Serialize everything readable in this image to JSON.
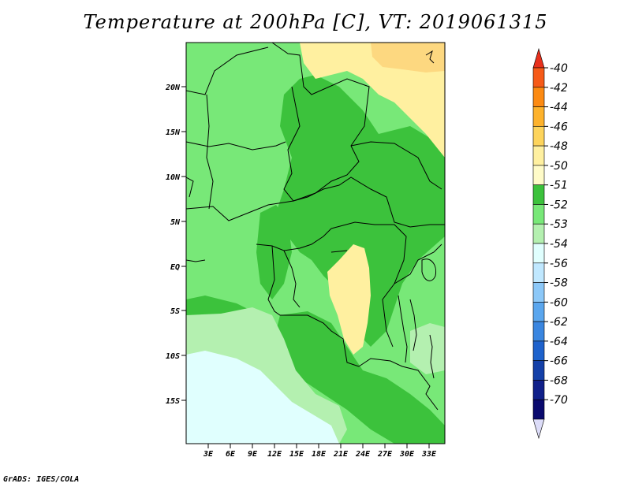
{
  "title": "Temperature at 200hPa [C], VT: 2019061315",
  "credit": "GrADS: IGES/COLA",
  "map": {
    "lat_labels": [
      "20N",
      "15N",
      "10N",
      "5N",
      "EQ",
      "5S",
      "10S",
      "15S"
    ],
    "lon_labels": [
      "3E",
      "6E",
      "9E",
      "12E",
      "15E",
      "18E",
      "21E",
      "24E",
      "27E",
      "30E",
      "33E"
    ],
    "field_colors": {
      "band_m52": "#3cc23c",
      "band_m53": "#78e878",
      "band_m54": "#b4f0b0",
      "band_m56": "#e0fffe",
      "band_m50": "#fff0a0",
      "band_m48": "#fdd880"
    }
  },
  "colorbar": {
    "labels": [
      "-40",
      "-42",
      "-44",
      "-46",
      "-48",
      "-50",
      "-51",
      "-52",
      "-53",
      "-54",
      "-56",
      "-58",
      "-60",
      "-62",
      "-64",
      "-66",
      "-68",
      "-70"
    ],
    "colors": [
      "#e8301c",
      "#f65a18",
      "#fc8a12",
      "#fdb22c",
      "#fdd45c",
      "#fff0a0",
      "#fffbc8",
      "#3cc23c",
      "#78e878",
      "#b4f0b0",
      "#e0fffe",
      "#c0e8ff",
      "#8cc8f8",
      "#5aa6ee",
      "#3a86e0",
      "#1e62cc",
      "#1440a8",
      "#10208a",
      "#0a0a6e",
      "#dcdcf8"
    ]
  }
}
